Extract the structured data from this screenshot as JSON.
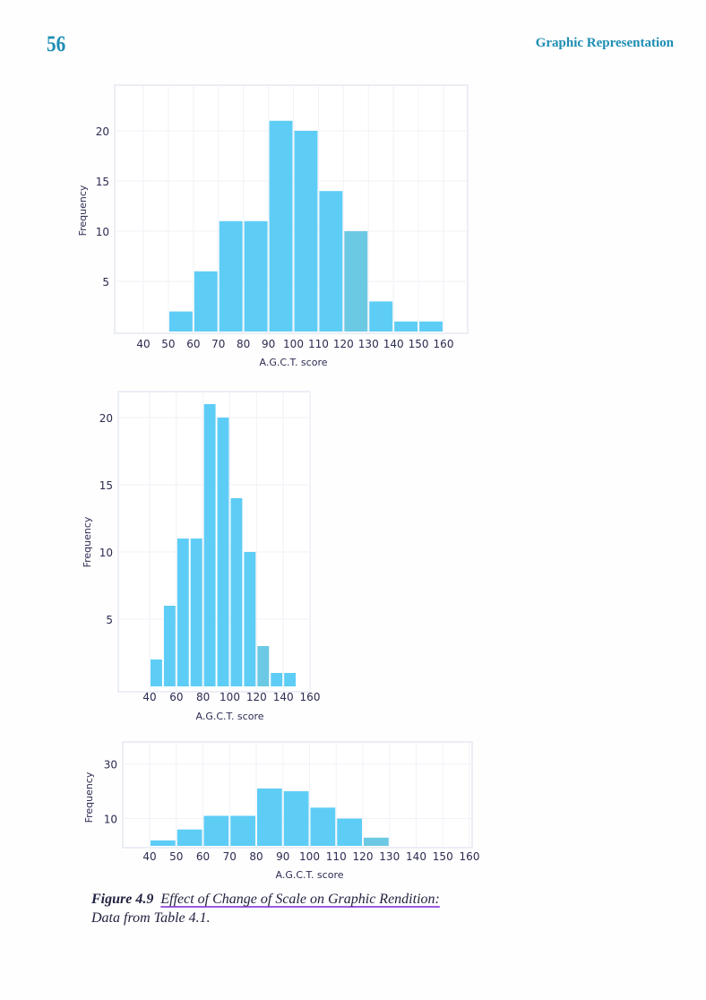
{
  "header": {
    "page_number": "56",
    "running_head": "Graphic Representation"
  },
  "caption": {
    "label": "Figure 4.9",
    "title": "Effect of Change of Scale on Graphic Rendition:",
    "source": "Data from Table 4.1."
  },
  "colors": {
    "bar": "#5ecdf6",
    "bar_alt": "#6cc9e4",
    "text": "#2b2b52",
    "header": "#1c8db3",
    "underline": "#9a5be0"
  },
  "chart_data": [
    {
      "type": "bar",
      "xlabel": "A.G.C.T. score",
      "ylabel": "Frequency",
      "xticks": [
        "40",
        "50",
        "60",
        "70",
        "80",
        "90",
        "100",
        "110",
        "120",
        "130",
        "140",
        "150",
        "160"
      ],
      "yticks": [
        "5",
        "10",
        "15",
        "20"
      ],
      "bin_starts": [
        50,
        60,
        70,
        80,
        90,
        100,
        110,
        120,
        130,
        140,
        150
      ],
      "bin_width": 10,
      "values": [
        2,
        6,
        11,
        11,
        21,
        20,
        14,
        10,
        3,
        1,
        1
      ],
      "xlim": [
        40,
        160
      ],
      "ylim": [
        0,
        24
      ],
      "grid": true
    },
    {
      "type": "bar",
      "xlabel": "A.G.C.T. score",
      "ylabel": "Frequency",
      "xticks": [
        "40",
        "60",
        "80",
        "100",
        "120",
        "140",
        "160"
      ],
      "yticks": [
        "5",
        "10",
        "15",
        "20"
      ],
      "bin_starts": [
        40,
        50,
        60,
        70,
        80,
        90,
        100,
        110,
        120,
        130,
        140
      ],
      "bin_width": 10,
      "values": [
        2,
        6,
        11,
        11,
        21,
        20,
        14,
        10,
        3,
        1,
        1
      ],
      "xlim": [
        40,
        160
      ],
      "ylim": [
        0,
        22
      ],
      "grid": true
    },
    {
      "type": "bar",
      "xlabel": "A.G.C.T. score",
      "ylabel": "Frequency",
      "xticks": [
        "40",
        "50",
        "60",
        "70",
        "80",
        "90",
        "100",
        "110",
        "120",
        "130",
        "140",
        "150",
        "160"
      ],
      "yticks": [
        "10",
        "30"
      ],
      "bin_starts": [
        40,
        50,
        60,
        70,
        80,
        90,
        100,
        110,
        120
      ],
      "bin_width": 10,
      "values": [
        2,
        6,
        11,
        11,
        21,
        20,
        14,
        10,
        3
      ],
      "xlim": [
        40,
        160
      ],
      "ylim": [
        0,
        38
      ],
      "grid": true
    }
  ]
}
